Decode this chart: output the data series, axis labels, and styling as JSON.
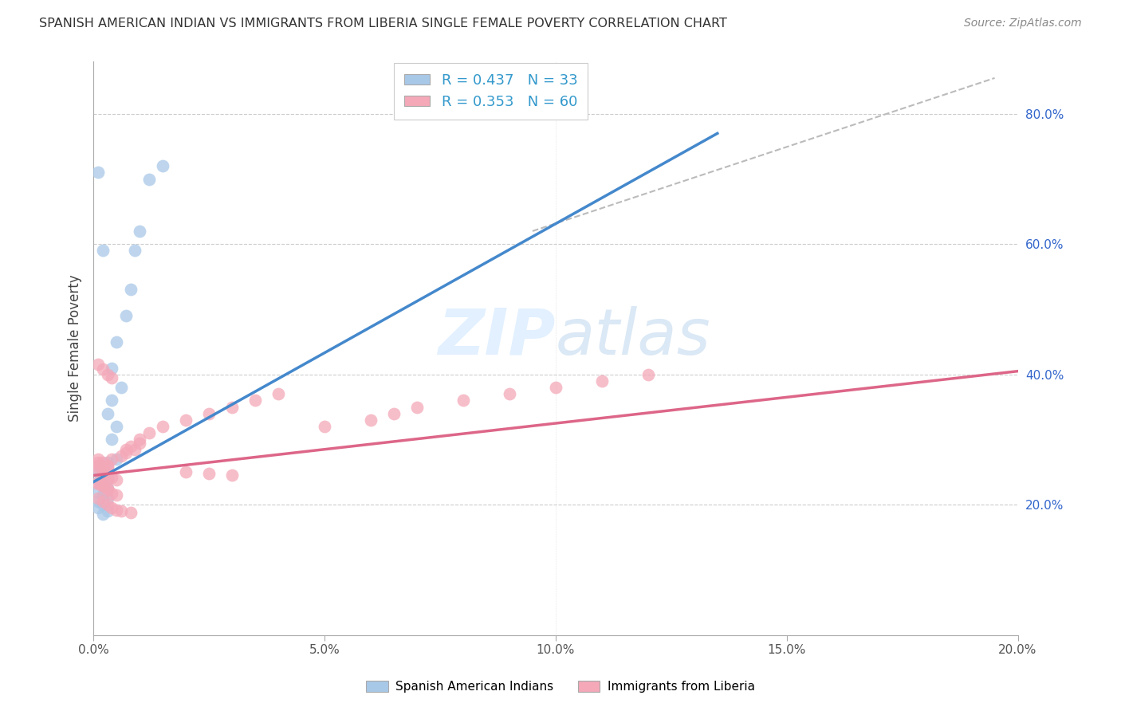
{
  "title": "SPANISH AMERICAN INDIAN VS IMMIGRANTS FROM LIBERIA SINGLE FEMALE POVERTY CORRELATION CHART",
  "source": "Source: ZipAtlas.com",
  "ylabel": "Single Female Poverty",
  "legend_label1": "Spanish American Indians",
  "legend_label2": "Immigrants from Liberia",
  "R1": 0.437,
  "N1": 33,
  "R2": 0.353,
  "N2": 60,
  "color1": "#a8c8e8",
  "color2": "#f4a8b8",
  "trendline1_color": "#4488cc",
  "trendline2_color": "#dd6688",
  "trendline_dashed_color": "#bbbbbb",
  "background_color": "#ffffff",
  "grid_color": "#cccccc",
  "xlim": [
    0.0,
    0.2
  ],
  "ylim": [
    0.0,
    0.88
  ],
  "xticks": [
    0.0,
    0.05,
    0.1,
    0.15,
    0.2
  ],
  "yticks_right": [
    0.2,
    0.4,
    0.6,
    0.8
  ],
  "blue_line_x": [
    0.0,
    0.135
  ],
  "blue_line_y": [
    0.235,
    0.77
  ],
  "pink_line_x": [
    0.0,
    0.2
  ],
  "pink_line_y": [
    0.245,
    0.405
  ],
  "dashed_line_x": [
    0.095,
    0.195
  ],
  "dashed_line_y": [
    0.62,
    0.855
  ],
  "scatter1_x": [
    0.001,
    0.002,
    0.001,
    0.002,
    0.003,
    0.001,
    0.002,
    0.003,
    0.001,
    0.002,
    0.003,
    0.001,
    0.002,
    0.001,
    0.003,
    0.002,
    0.004,
    0.005,
    0.003,
    0.004,
    0.006,
    0.004,
    0.005,
    0.007,
    0.008,
    0.009,
    0.01,
    0.012,
    0.015,
    0.005,
    0.002,
    0.001,
    0.003
  ],
  "scatter1_y": [
    0.26,
    0.255,
    0.25,
    0.245,
    0.24,
    0.235,
    0.23,
    0.225,
    0.22,
    0.215,
    0.21,
    0.205,
    0.2,
    0.195,
    0.19,
    0.185,
    0.3,
    0.32,
    0.34,
    0.36,
    0.38,
    0.41,
    0.45,
    0.49,
    0.53,
    0.59,
    0.62,
    0.7,
    0.72,
    0.27,
    0.59,
    0.71,
    0.265
  ],
  "scatter2_x": [
    0.001,
    0.001,
    0.002,
    0.002,
    0.003,
    0.003,
    0.001,
    0.002,
    0.003,
    0.004,
    0.001,
    0.002,
    0.003,
    0.004,
    0.005,
    0.001,
    0.002,
    0.003,
    0.004,
    0.005,
    0.006,
    0.007,
    0.008,
    0.009,
    0.01,
    0.001,
    0.002,
    0.003,
    0.004,
    0.005,
    0.006,
    0.007,
    0.008,
    0.01,
    0.012,
    0.015,
    0.02,
    0.025,
    0.03,
    0.035,
    0.04,
    0.05,
    0.06,
    0.065,
    0.07,
    0.08,
    0.09,
    0.1,
    0.11,
    0.12,
    0.001,
    0.002,
    0.003,
    0.001,
    0.002,
    0.003,
    0.004,
    0.02,
    0.025,
    0.03
  ],
  "scatter2_y": [
    0.265,
    0.255,
    0.25,
    0.245,
    0.258,
    0.24,
    0.235,
    0.23,
    0.225,
    0.27,
    0.26,
    0.255,
    0.248,
    0.242,
    0.238,
    0.232,
    0.228,
    0.222,
    0.218,
    0.215,
    0.275,
    0.28,
    0.29,
    0.285,
    0.295,
    0.21,
    0.205,
    0.2,
    0.195,
    0.192,
    0.19,
    0.285,
    0.188,
    0.3,
    0.31,
    0.32,
    0.33,
    0.34,
    0.35,
    0.36,
    0.37,
    0.32,
    0.33,
    0.34,
    0.35,
    0.36,
    0.37,
    0.38,
    0.39,
    0.4,
    0.27,
    0.265,
    0.26,
    0.415,
    0.408,
    0.4,
    0.395,
    0.25,
    0.248,
    0.245
  ]
}
